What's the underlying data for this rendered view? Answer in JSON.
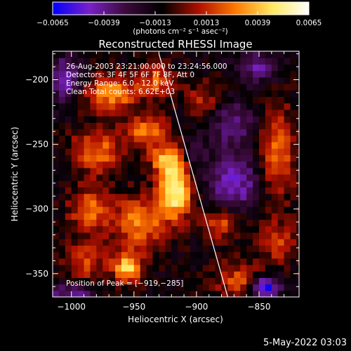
{
  "chart_data": {
    "type": "heatmap",
    "title": "Reconstructed RHESSI Image",
    "xlabel": "Heliocentric X (arcsec)",
    "ylabel": "Heliocentric Y (arcsec)",
    "xlim": [
      -1015,
      -818
    ],
    "ylim": [
      -368,
      -178
    ],
    "x_ticks": [
      -1000,
      -950,
      -900,
      -850
    ],
    "y_ticks": [
      -200,
      -250,
      -300,
      -350
    ],
    "x_tick_labels": [
      "−1000",
      "−950",
      "−900",
      "−850"
    ],
    "y_tick_labels": [
      "−200",
      "−250",
      "−300",
      "−350"
    ],
    "colorbar": {
      "range": [
        -0.0065,
        0.0065
      ],
      "tick_values": [
        -0.0065,
        -0.0039,
        -0.0013,
        0.0013,
        0.0039,
        0.0065
      ],
      "tick_labels": [
        "−0.0065",
        "−0.0039",
        "−0.0013",
        "0.0013",
        "0.0039",
        "0.0065"
      ],
      "units": "(photons cm⁻² s⁻¹ asec⁻²)",
      "colors": [
        "#0000ff",
        "#7a20c8",
        "#3a0a3a",
        "#000000",
        "#b01000",
        "#ff7a00",
        "#ffe860",
        "#ffffff"
      ]
    },
    "annotations": [
      "26-Aug-2003 23:21:00.000 to 23:24:56.000",
      "Detectors: 3F 4F 5F 6F 7F 8F, Att 0",
      "Energy Range: 6.0 - 12.0 keV",
      "Clean     Total counts: 6.62E+03"
    ],
    "peak_label": "Position of Peak = [−919,−285]",
    "peak": {
      "x": -919,
      "y": -285
    },
    "limb_line": [
      [
        -930,
        -180
      ],
      [
        -875,
        -368
      ]
    ],
    "blobs": [
      {
        "x": -917,
        "y": -285,
        "sx": 9,
        "sy": 15,
        "a": 0.0068
      },
      {
        "x": -925,
        "y": -262,
        "sx": 8,
        "sy": 8,
        "a": 0.004
      },
      {
        "x": -940,
        "y": -240,
        "sx": 12,
        "sy": 9,
        "a": 0.0038
      },
      {
        "x": -968,
        "y": -210,
        "sx": 16,
        "sy": 10,
        "a": 0.0042
      },
      {
        "x": -980,
        "y": -255,
        "sx": 14,
        "sy": 12,
        "a": 0.0036
      },
      {
        "x": -985,
        "y": -300,
        "sx": 12,
        "sy": 12,
        "a": 0.0034
      },
      {
        "x": -945,
        "y": -310,
        "sx": 14,
        "sy": 14,
        "a": 0.004
      },
      {
        "x": -955,
        "y": -345,
        "sx": 8,
        "sy": 8,
        "a": 0.0055
      },
      {
        "x": -990,
        "y": -340,
        "sx": 12,
        "sy": 12,
        "a": 0.0028
      },
      {
        "x": -930,
        "y": -200,
        "sx": 10,
        "sy": 8,
        "a": 0.0032
      },
      {
        "x": -880,
        "y": -310,
        "sx": 10,
        "sy": 9,
        "a": 0.0034
      },
      {
        "x": -835,
        "y": -255,
        "sx": 10,
        "sy": 25,
        "a": 0.0034
      },
      {
        "x": -865,
        "y": -355,
        "sx": 14,
        "sy": 10,
        "a": 0.003
      },
      {
        "x": -835,
        "y": -325,
        "sx": 10,
        "sy": 12,
        "a": 0.0026
      },
      {
        "x": -895,
        "y": -215,
        "sx": 10,
        "sy": 10,
        "a": 0.002
      },
      {
        "x": -870,
        "y": -235,
        "sx": 12,
        "sy": 12,
        "a": -0.003
      },
      {
        "x": -870,
        "y": -280,
        "sx": 15,
        "sy": 15,
        "a": -0.0035
      },
      {
        "x": -1005,
        "y": -200,
        "sx": 10,
        "sy": 12,
        "a": -0.0035
      },
      {
        "x": -850,
        "y": -190,
        "sx": 12,
        "sy": 8,
        "a": -0.003
      },
      {
        "x": -845,
        "y": -360,
        "sx": 8,
        "sy": 6,
        "a": -0.0055
      },
      {
        "x": -1000,
        "y": -365,
        "sx": 12,
        "sy": 6,
        "a": -0.0032
      },
      {
        "x": -900,
        "y": -255,
        "sx": 6,
        "sy": 8,
        "a": -0.002
      }
    ]
  },
  "footer": {
    "timestamp": "5-May-2022 03:03"
  }
}
